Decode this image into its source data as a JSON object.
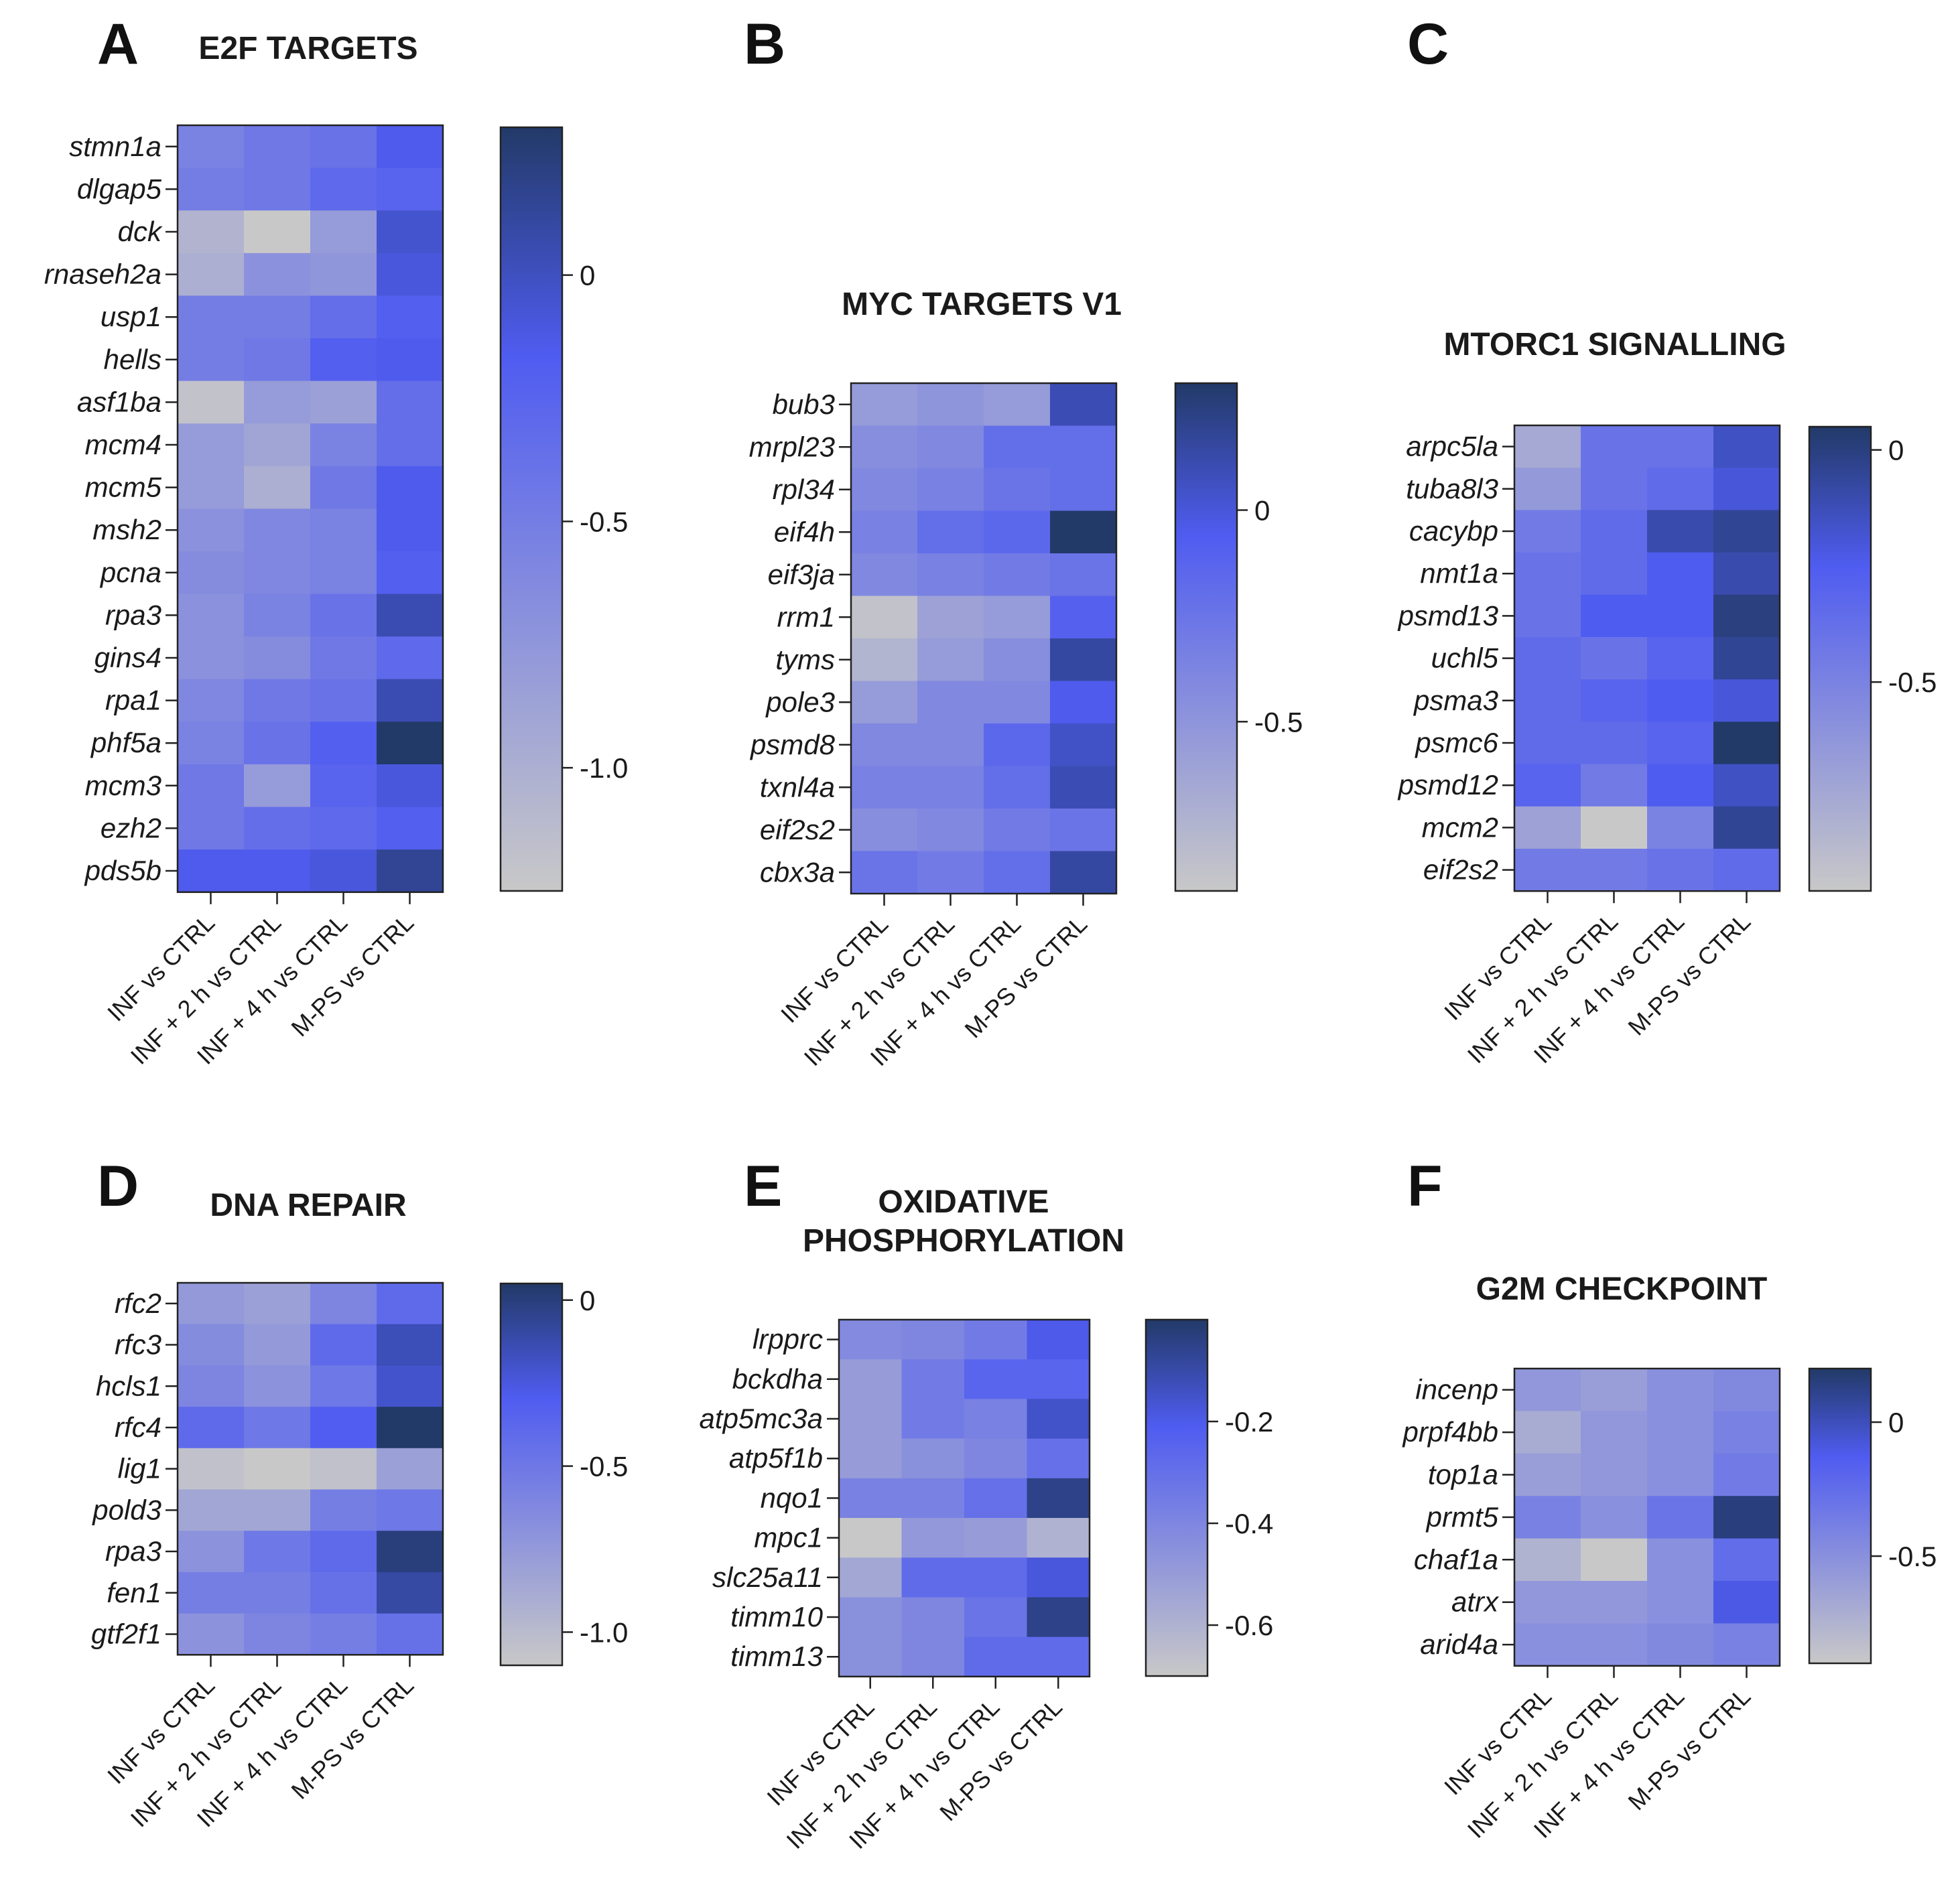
{
  "colors": {
    "low": "#c8c8c8",
    "mid": "#4f5cf0",
    "high": "#223a68",
    "axis": "#222222"
  },
  "chart_data": [
    {
      "type": "heatmap",
      "panel": "A",
      "title": "E2F TARGETS",
      "columns": [
        "INF vs CTRL",
        "INF + 2 h vs CTRL",
        "INF + 4 h vs CTRL",
        "M-PS vs CTRL"
      ],
      "rows": [
        "stmn1a",
        "dlgap5",
        "dck",
        "rnaseh2a",
        "usp1",
        "hells",
        "asf1ba",
        "mcm4",
        "mcm5",
        "msh2",
        "pcna",
        "rpa3",
        "gins4",
        "rpa1",
        "phf5a",
        "mcm3",
        "ezh2",
        "pds5b"
      ],
      "values": [
        [
          -0.55,
          -0.45,
          -0.4,
          -0.15
        ],
        [
          -0.5,
          -0.45,
          -0.3,
          -0.25
        ],
        [
          -1.05,
          -1.25,
          -0.8,
          -0.05
        ],
        [
          -1.0,
          -0.7,
          -0.75,
          -0.1
        ],
        [
          -0.5,
          -0.5,
          -0.35,
          -0.2
        ],
        [
          -0.5,
          -0.45,
          -0.2,
          -0.15
        ],
        [
          -1.2,
          -0.8,
          -0.85,
          -0.35
        ],
        [
          -0.8,
          -0.9,
          -0.55,
          -0.35
        ],
        [
          -0.8,
          -1.0,
          -0.45,
          -0.15
        ],
        [
          -0.7,
          -0.6,
          -0.55,
          -0.15
        ],
        [
          -0.65,
          -0.6,
          -0.55,
          -0.2
        ],
        [
          -0.7,
          -0.55,
          -0.4,
          0.05
        ],
        [
          -0.7,
          -0.65,
          -0.45,
          -0.3
        ],
        [
          -0.6,
          -0.45,
          -0.4,
          0.05
        ],
        [
          -0.55,
          -0.4,
          -0.2,
          0.3
        ],
        [
          -0.45,
          -0.8,
          -0.25,
          -0.1
        ],
        [
          -0.45,
          -0.35,
          -0.3,
          -0.2
        ],
        [
          -0.15,
          -0.15,
          -0.1,
          0.15
        ]
      ],
      "colorbar": {
        "min": -1.25,
        "max": 0.3,
        "ticks": [
          0,
          -0.5,
          -1.0
        ],
        "tick_labels": [
          "0",
          "-0.5",
          "-1.0"
        ]
      }
    },
    {
      "type": "heatmap",
      "panel": "B",
      "title": "MYC TARGETS V1",
      "columns": [
        "INF vs CTRL",
        "INF + 2 h vs CTRL",
        "INF + 4 h vs CTRL",
        "M-PS vs CTRL"
      ],
      "rows": [
        "bub3",
        "mrpl23",
        "rpl34",
        "eif4h",
        "eif3ja",
        "rrm1",
        "tyms",
        "pole3",
        "psmd8",
        "txnl4a",
        "eif2s2",
        "cbx3a"
      ],
      "values": [
        [
          -0.55,
          -0.5,
          -0.55,
          0.1
        ],
        [
          -0.45,
          -0.4,
          -0.2,
          -0.2
        ],
        [
          -0.4,
          -0.35,
          -0.25,
          -0.2
        ],
        [
          -0.35,
          -0.2,
          -0.15,
          0.3
        ],
        [
          -0.4,
          -0.35,
          -0.3,
          -0.25
        ],
        [
          -0.85,
          -0.6,
          -0.55,
          -0.1
        ],
        [
          -0.75,
          -0.55,
          -0.45,
          0.15
        ],
        [
          -0.55,
          -0.4,
          -0.4,
          -0.05
        ],
        [
          -0.4,
          -0.4,
          -0.15,
          0.05
        ],
        [
          -0.35,
          -0.35,
          -0.2,
          0.1
        ],
        [
          -0.45,
          -0.4,
          -0.3,
          -0.25
        ],
        [
          -0.25,
          -0.3,
          -0.2,
          0.15
        ]
      ],
      "colorbar": {
        "min": -0.9,
        "max": 0.3,
        "ticks": [
          0,
          -0.5
        ],
        "tick_labels": [
          "0",
          "-0.5"
        ]
      }
    },
    {
      "type": "heatmap",
      "panel": "C",
      "title": "MTORC1 SIGNALLING",
      "columns": [
        "INF vs CTRL",
        "INF + 2 h vs CTRL",
        "INF + 4 h vs CTRL",
        "M-PS vs CTRL"
      ],
      "rows": [
        "arpc5la",
        "tuba8l3",
        "cacybp",
        "nmt1a",
        "psmd13",
        "uchl5",
        "psma3",
        "psmc6",
        "psmd12",
        "mcm2",
        "eif2s2"
      ],
      "values": [
        [
          -0.75,
          -0.4,
          -0.4,
          -0.15
        ],
        [
          -0.65,
          -0.4,
          -0.35,
          -0.2
        ],
        [
          -0.45,
          -0.35,
          -0.1,
          -0.05
        ],
        [
          -0.4,
          -0.35,
          -0.25,
          -0.1
        ],
        [
          -0.4,
          -0.25,
          -0.25,
          0.0
        ],
        [
          -0.35,
          -0.4,
          -0.3,
          -0.05
        ],
        [
          -0.35,
          -0.3,
          -0.25,
          -0.2
        ],
        [
          -0.35,
          -0.35,
          -0.3,
          0.05
        ],
        [
          -0.3,
          -0.45,
          -0.25,
          -0.15
        ],
        [
          -0.7,
          -0.95,
          -0.5,
          -0.05
        ],
        [
          -0.45,
          -0.45,
          -0.4,
          -0.35
        ]
      ],
      "colorbar": {
        "min": -0.95,
        "max": 0.05,
        "ticks": [
          0,
          -0.5
        ],
        "tick_labels": [
          "0",
          "-0.5"
        ]
      }
    },
    {
      "type": "heatmap",
      "panel": "D",
      "title": "DNA REPAIR",
      "columns": [
        "INF vs CTRL",
        "INF + 2 h vs CTRL",
        "INF + 4 h vs CTRL",
        "M-PS vs CTRL"
      ],
      "rows": [
        "rfc2",
        "rfc3",
        "hcls1",
        "rfc4",
        "lig1",
        "pold3",
        "rpa3",
        "fen1",
        "gtf2f1"
      ],
      "values": [
        [
          -0.75,
          -0.8,
          -0.6,
          -0.4
        ],
        [
          -0.65,
          -0.75,
          -0.4,
          -0.15
        ],
        [
          -0.6,
          -0.7,
          -0.5,
          -0.2
        ],
        [
          -0.4,
          -0.5,
          -0.3,
          0.05
        ],
        [
          -1.05,
          -1.1,
          -1.05,
          -0.8
        ],
        [
          -0.85,
          -0.85,
          -0.55,
          -0.5
        ],
        [
          -0.7,
          -0.5,
          -0.4,
          0.0
        ],
        [
          -0.55,
          -0.55,
          -0.45,
          -0.1
        ],
        [
          -0.7,
          -0.6,
          -0.55,
          -0.45
        ]
      ],
      "colorbar": {
        "min": -1.1,
        "max": 0.05,
        "ticks": [
          0,
          -0.5,
          -1.0
        ],
        "tick_labels": [
          "0",
          "-0.5",
          "-1.0"
        ]
      }
    },
    {
      "type": "heatmap",
      "panel": "E",
      "title": "OXIDATIVE PHOSPHORYLATION",
      "title_lines": [
        "OXIDATIVE",
        "PHOSPHORYLATION"
      ],
      "columns": [
        "INF vs CTRL",
        "INF + 2 h vs CTRL",
        "INF + 4 h vs CTRL",
        "M-PS vs CTRL"
      ],
      "rows": [
        "lrpprc",
        "bckdha",
        "atp5mc3a",
        "atp5f1b",
        "nqo1",
        "mpc1",
        "slc25a11",
        "timm10",
        "timm13"
      ],
      "values": [
        [
          -0.42,
          -0.4,
          -0.35,
          -0.2
        ],
        [
          -0.5,
          -0.35,
          -0.25,
          -0.25
        ],
        [
          -0.5,
          -0.35,
          -0.38,
          -0.15
        ],
        [
          -0.5,
          -0.45,
          -0.4,
          -0.3
        ],
        [
          -0.38,
          -0.38,
          -0.3,
          -0.05
        ],
        [
          -0.7,
          -0.48,
          -0.5,
          -0.6
        ],
        [
          -0.55,
          -0.28,
          -0.28,
          -0.18
        ],
        [
          -0.45,
          -0.4,
          -0.32,
          -0.05
        ],
        [
          -0.45,
          -0.4,
          -0.28,
          -0.28
        ]
      ],
      "colorbar": {
        "min": -0.7,
        "max": 0.0,
        "ticks": [
          -0.2,
          -0.4,
          -0.6
        ],
        "tick_labels": [
          "-0.2",
          "-0.4",
          "-0.6"
        ]
      }
    },
    {
      "type": "heatmap",
      "panel": "F",
      "title": "G2M CHECKPOINT",
      "columns": [
        "INF vs CTRL",
        "INF + 2 h vs CTRL",
        "INF + 4 h vs CTRL",
        "M-PS vs CTRL"
      ],
      "rows": [
        "incenp",
        "prpf4bb",
        "top1a",
        "prmt5",
        "chaf1a",
        "atrx",
        "arid4a"
      ],
      "values": [
        [
          -0.55,
          -0.6,
          -0.5,
          -0.45
        ],
        [
          -0.7,
          -0.55,
          -0.5,
          -0.4
        ],
        [
          -0.6,
          -0.55,
          -0.5,
          -0.35
        ],
        [
          -0.4,
          -0.5,
          -0.3,
          0.15
        ],
        [
          -0.75,
          -0.9,
          -0.5,
          -0.25
        ],
        [
          -0.55,
          -0.55,
          -0.5,
          -0.1
        ],
        [
          -0.5,
          -0.5,
          -0.45,
          -0.4
        ]
      ],
      "colorbar": {
        "min": -0.9,
        "max": 0.2,
        "ticks": [
          0,
          -0.5
        ],
        "tick_labels": [
          "0",
          "-0.5"
        ]
      }
    }
  ]
}
